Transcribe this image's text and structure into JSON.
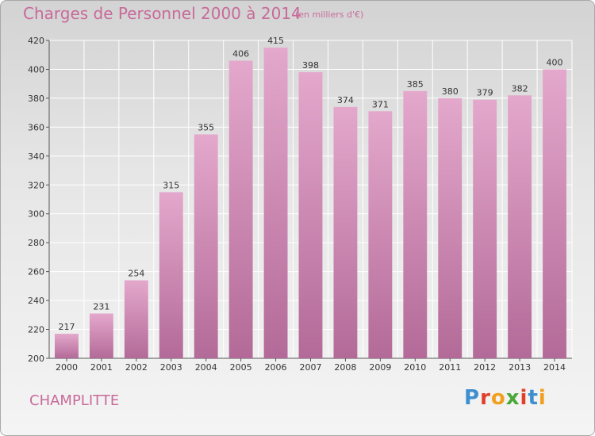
{
  "header": {
    "title": "Charges de Personnel 2000 à 2014",
    "subtitle": "(en milliers d'€)"
  },
  "footer": {
    "commune": "CHAMPLITTE",
    "logo_letters": [
      "P",
      "r",
      "o",
      "x",
      "i",
      "t",
      "i"
    ],
    "logo_colors": [
      "#3e8fd0",
      "#e0402a",
      "#f0a020",
      "#4aa838",
      "#e0402a",
      "#3e8fd0",
      "#f0a020"
    ]
  },
  "chart_data": {
    "type": "bar",
    "title": "Charges de Personnel 2000 à 2014",
    "subtitle": "(en milliers d'€)",
    "categories": [
      "2000",
      "2001",
      "2002",
      "2003",
      "2004",
      "2005",
      "2006",
      "2007",
      "2008",
      "2009",
      "2010",
      "2011",
      "2012",
      "2013",
      "2014"
    ],
    "values": [
      217,
      231,
      254,
      315,
      355,
      406,
      415,
      398,
      374,
      371,
      385,
      380,
      379,
      382,
      400
    ],
    "ylim": [
      200,
      420
    ],
    "yticks": [
      200,
      220,
      240,
      260,
      280,
      300,
      320,
      340,
      360,
      380,
      400,
      420
    ],
    "grid": true,
    "bar_color_top": "#e4a8cc",
    "bar_color_bottom": "#b36a98"
  }
}
